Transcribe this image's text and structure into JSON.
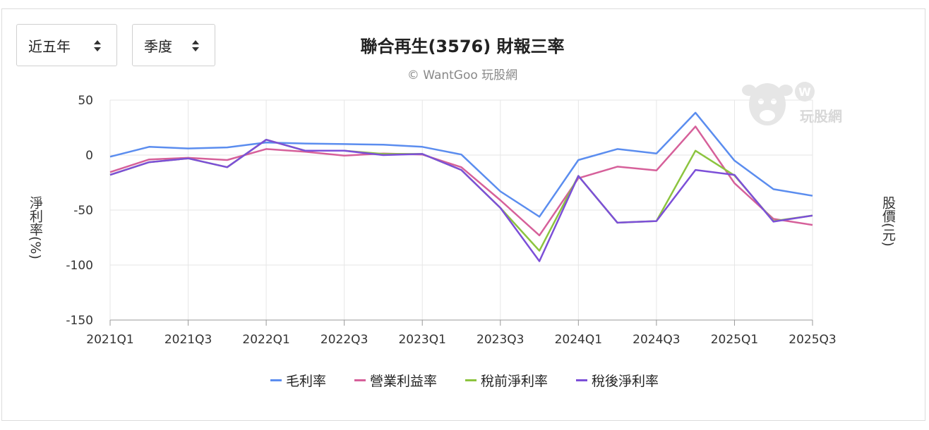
{
  "controls": {
    "range_label": "近五年",
    "period_label": "季度"
  },
  "watermark_text": "玩股網",
  "chart_data": {
    "type": "line",
    "title": "聯合再生(3576) 財報三率",
    "subtitle": "© WantGoo 玩股網",
    "ylabel": "淨利率(%)",
    "ylabel_right": "股價(元)",
    "ylim": [
      -150,
      50
    ],
    "yticks": [
      50,
      0,
      -50,
      -100,
      -150
    ],
    "grid": true,
    "legend_position": "bottom",
    "x": [
      "2021Q1",
      "2021Q2",
      "2021Q3",
      "2021Q4",
      "2022Q1",
      "2022Q2",
      "2022Q3",
      "2022Q4",
      "2023Q1",
      "2023Q2",
      "2023Q3",
      "2023Q4",
      "2024Q1",
      "2024Q2",
      "2024Q3",
      "2024Q4",
      "2025Q1",
      "2025Q2",
      "2025Q3"
    ],
    "xtick_labels": [
      "2021Q1",
      "2021Q3",
      "2022Q1",
      "2022Q3",
      "2023Q1",
      "2023Q3",
      "2024Q1",
      "2024Q3",
      "2025Q1",
      "2025Q3"
    ],
    "series": [
      {
        "name": "毛利率",
        "color": "#5b8def",
        "values": [
          -1.5,
          7.5,
          6,
          7,
          11.5,
          10.5,
          10,
          9.5,
          7.5,
          0.5,
          -33,
          -56,
          -4.5,
          5.5,
          1.5,
          38.5,
          -5,
          -31,
          -37
        ]
      },
      {
        "name": "營業利益率",
        "color": "#d6609a",
        "values": [
          -15.5,
          -4,
          -2.5,
          -4.5,
          5.5,
          3,
          -0.5,
          1.5,
          0.5,
          -11,
          -41,
          -73,
          -21,
          -10.5,
          -14,
          26,
          -25.5,
          -58,
          -63.5
        ]
      },
      {
        "name": "稅前淨利率",
        "color": "#8cc43f",
        "values": [
          -18,
          -6.5,
          -3,
          -11,
          14,
          4,
          4,
          1,
          1,
          -13.5,
          -48,
          -87,
          -19,
          -61.5,
          -60,
          4,
          -18.5,
          -60,
          -55
        ]
      },
      {
        "name": "稅後淨利率",
        "color": "#7c4fd8",
        "values": [
          -18,
          -6.5,
          -3,
          -11,
          14,
          4,
          4,
          0,
          1,
          -13.5,
          -48,
          -96.5,
          -19,
          -61.5,
          -60,
          -13.5,
          -18,
          -60.5,
          -55
        ]
      }
    ]
  }
}
